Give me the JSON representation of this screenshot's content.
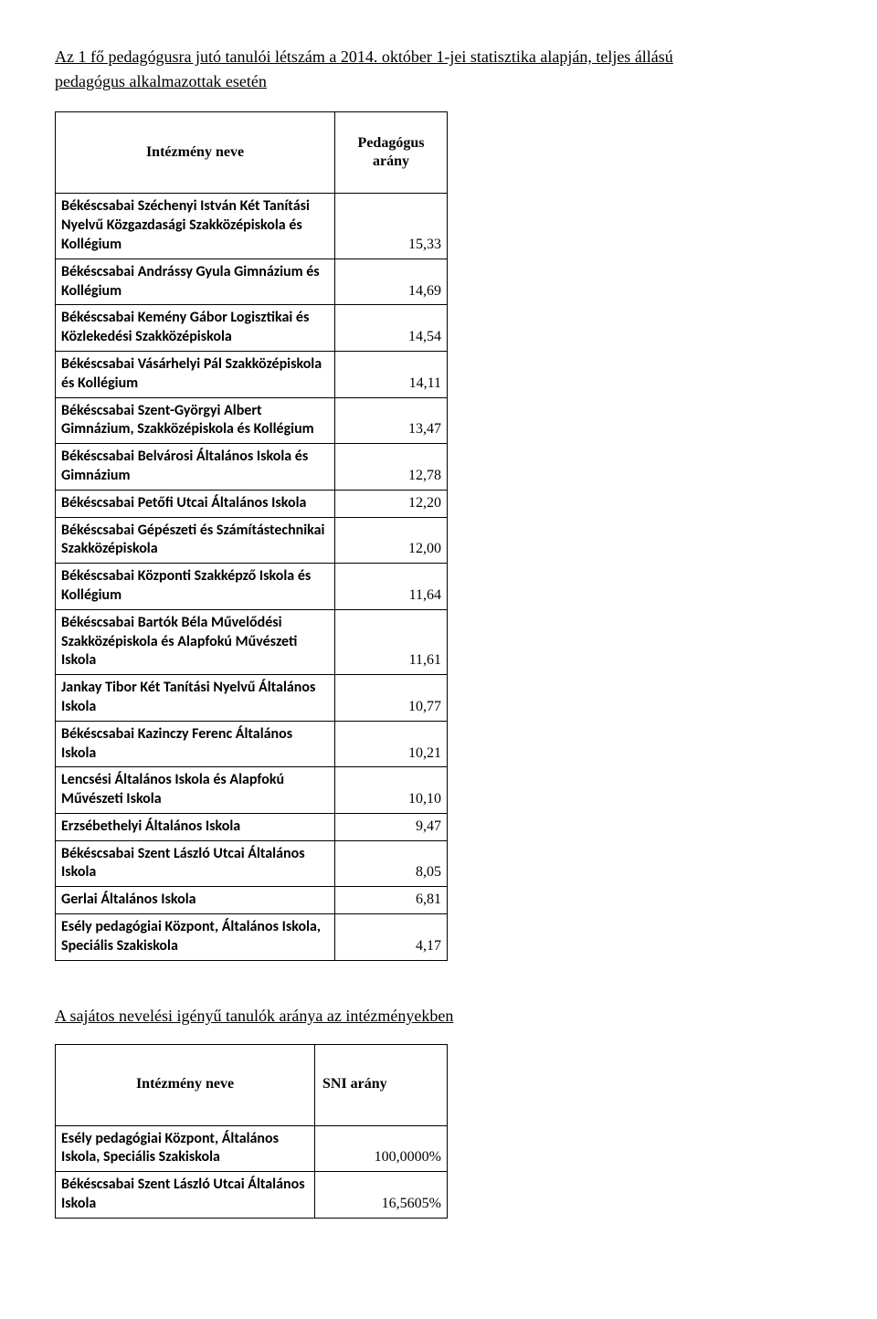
{
  "title_line1": "Az 1 fő pedagógusra jutó tanulói létszám a 2014. október 1-jei statisztika alapján, teljes állású",
  "title_line2": "pedagógus alkalmazottak esetén",
  "section2_title": "A sajátos nevelési igényű tanulók aránya az intézményekben",
  "table1": {
    "header_left": "Intézmény neve",
    "header_right": "Pedagógus arány",
    "col_left_width": 300,
    "col_right_width": 110,
    "rows": [
      {
        "name": "Békéscsabai Széchenyi István Két Tanítási Nyelvű Közgazdasági Szakközépiskola és Kollégium",
        "val": "15,33"
      },
      {
        "name": "Békéscsabai Andrássy Gyula Gimnázium és Kollégium",
        "val": "14,69"
      },
      {
        "name": "Békéscsabai Kemény Gábor Logisztikai és Közlekedési Szakközépiskola",
        "val": "14,54"
      },
      {
        "name": "Békéscsabai Vásárhelyi Pál Szakközépiskola és Kollégium",
        "val": "14,11"
      },
      {
        "name": "Békéscsabai Szent-Györgyi Albert Gimnázium, Szakközépiskola és Kollégium",
        "val": "13,47"
      },
      {
        "name": "Békéscsabai Belvárosi Általános Iskola és Gimnázium",
        "val": "12,78"
      },
      {
        "name": "Békéscsabai Petőfi Utcai Általános Iskola",
        "val": "12,20"
      },
      {
        "name": "Békéscsabai Gépészeti és Számítástechnikai Szakközépiskola",
        "val": "12,00"
      },
      {
        "name": "Békéscsabai Központi Szakképző Iskola és Kollégium",
        "val": "11,64"
      },
      {
        "name": "Békéscsabai Bartók Béla Művelődési Szakközépiskola és Alapfokú Művészeti Iskola",
        "val": "11,61"
      },
      {
        "name": "Jankay Tibor Két Tanítási Nyelvű Általános Iskola",
        "val": "10,77"
      },
      {
        "name": "Békéscsabai Kazinczy Ferenc Általános Iskola",
        "val": "10,21"
      },
      {
        "name": "Lencsési Általános Iskola és Alapfokú Művészeti Iskola",
        "val": "10,10"
      },
      {
        "name": "Erzsébethelyi Általános Iskola",
        "val": "9,47"
      },
      {
        "name": "Békéscsabai Szent László Utcai Általános Iskola",
        "val": "8,05"
      },
      {
        "name": "Gerlai Általános Iskola",
        "val": "6,81"
      },
      {
        "name": "Esély pedagógiai Központ, Általános Iskola, Speciális Szakiskola",
        "val": "4,17"
      }
    ]
  },
  "table2": {
    "header_left": "Intézmény neve",
    "header_right": "SNI arány",
    "col_left_width": 300,
    "col_right_width": 130,
    "rows": [
      {
        "name": "Esély pedagógiai Központ, Általános Iskola, Speciális Szakiskola",
        "val": "100,0000%"
      },
      {
        "name": "Békéscsabai Szent László Utcai Általános Iskola",
        "val": "16,5605%"
      }
    ]
  }
}
